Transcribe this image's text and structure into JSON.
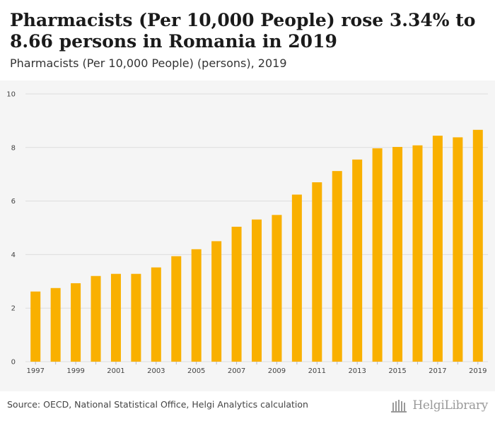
{
  "header": {
    "title": "Pharmacists (Per 10,000 People) rose 3.34% to 8.66 persons in Romania in 2019",
    "subtitle": "Pharmacists (Per 10,000 People) (persons), 2019"
  },
  "footer": {
    "source": "Source: OECD, National Statistical Office, Helgi Analytics calculation",
    "logo_text": "HelgiLibrary"
  },
  "colors": {
    "bar": "#F9B000",
    "grid": "#dddddd",
    "background": "#f5f5f5"
  },
  "chart_data": {
    "type": "bar",
    "title": "Pharmacists (Per 10,000 People) rose 3.34% to 8.66 persons in Romania in 2019",
    "subtitle": "Pharmacists (Per 10,000 People) (persons), 2019",
    "xlabel": "",
    "ylabel": "",
    "ylim": [
      0,
      10
    ],
    "yticks": [
      0,
      2,
      4,
      6,
      8,
      10
    ],
    "grid": true,
    "categories": [
      "1997",
      "1998",
      "1999",
      "2000",
      "2001",
      "2002",
      "2003",
      "2004",
      "2005",
      "2006",
      "2007",
      "2008",
      "2009",
      "2010",
      "2011",
      "2012",
      "2013",
      "2014",
      "2015",
      "2016",
      "2017",
      "2018",
      "2019"
    ],
    "x_tick_labels": [
      "1997",
      "1999",
      "2001",
      "2003",
      "2005",
      "2007",
      "2009",
      "2011",
      "2013",
      "2015",
      "2017",
      "2019"
    ],
    "values": [
      2.62,
      2.75,
      2.93,
      3.2,
      3.28,
      3.28,
      3.52,
      3.94,
      4.2,
      4.5,
      5.04,
      5.31,
      5.48,
      6.24,
      6.7,
      7.12,
      7.55,
      7.97,
      8.02,
      8.08,
      8.44,
      8.38,
      8.66
    ]
  }
}
